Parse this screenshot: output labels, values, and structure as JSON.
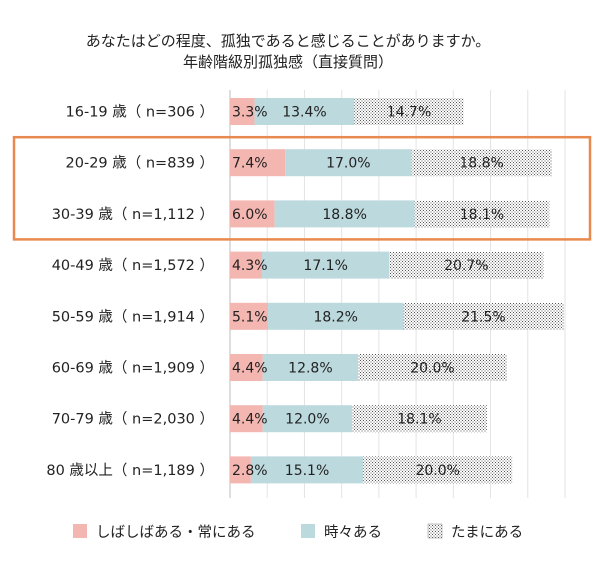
{
  "chart_data": {
    "type": "bar",
    "orientation": "horizontal",
    "stacked": true,
    "title": "あなたはどの程度、孤独であると感じることがありますか。",
    "subtitle": "年齢階級別孤独感（直接質問）",
    "categories": [
      "16-19 歳（ n=306 ）",
      "20-29 歳（ n=839 ）",
      "30-39 歳（ n=1,112 ）",
      "40-49 歳（ n=1,572 ）",
      "50-59 歳（ n=1,914 ）",
      "60-69 歳（ n=1,909 ）",
      "70-79 歳（ n=2,030 ）",
      "80 歳以上（ n=1,189 ）"
    ],
    "series": [
      {
        "name": "しばしばある・常にある",
        "color": "#f4b6b1",
        "pattern": "solid",
        "values": [
          3.3,
          7.4,
          6.0,
          4.3,
          5.1,
          4.4,
          4.4,
          2.8
        ],
        "labels": [
          "3.3%",
          "7.4%",
          "6.0%",
          "4.3%",
          "5.1%",
          "4.4%",
          "4.4%",
          "2.8%"
        ]
      },
      {
        "name": "時々ある",
        "color": "#bcd9de",
        "pattern": "solid",
        "values": [
          13.4,
          17.0,
          18.8,
          17.1,
          18.2,
          12.8,
          12.0,
          15.1
        ],
        "labels": [
          "13.4%",
          "17.0%",
          "18.8%",
          "17.1%",
          "18.2%",
          "12.8%",
          "12.0%",
          "15.1%"
        ]
      },
      {
        "name": "たまにある",
        "color": "#555555",
        "pattern": "dots",
        "values": [
          14.7,
          18.8,
          18.1,
          20.7,
          21.5,
          20.0,
          18.1,
          20.0
        ],
        "labels": [
          "14.7%",
          "18.8%",
          "18.1%",
          "20.7%",
          "21.5%",
          "20.0%",
          "18.1%",
          "20.0%"
        ]
      }
    ],
    "xlim": [
      0,
      45
    ],
    "grid": true,
    "legend_position": "bottom",
    "highlight": {
      "categories": [
        "20-29 歳（ n=839 ）",
        "30-39 歳（ n=1,112 ）"
      ],
      "color": "#e88a4f"
    }
  }
}
